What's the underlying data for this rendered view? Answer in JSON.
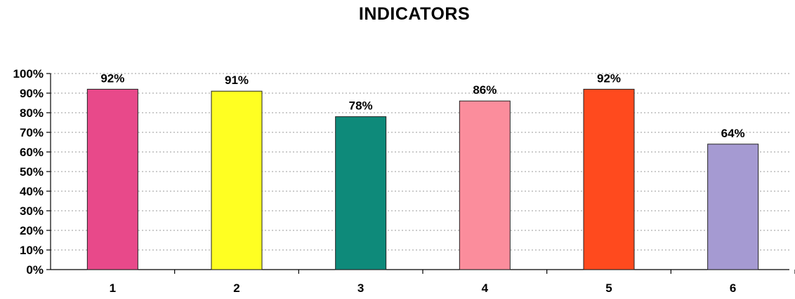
{
  "chart_data": {
    "type": "bar",
    "title": "INDICATORS",
    "xlabel": "",
    "ylabel": "",
    "categories": [
      "1",
      "2",
      "3",
      "4",
      "5",
      "6"
    ],
    "values": [
      92,
      91,
      78,
      86,
      92,
      64
    ],
    "data_labels": [
      "92%",
      "91%",
      "78%",
      "86%",
      "92%",
      "64%"
    ],
    "ylim": [
      0,
      100
    ],
    "y_ticks": [
      0,
      10,
      20,
      30,
      40,
      50,
      60,
      70,
      80,
      90,
      100
    ],
    "y_tick_labels": [
      "0%",
      "10%",
      "20%",
      "30%",
      "40%",
      "50%",
      "60%",
      "70%",
      "80%",
      "90%",
      "100%"
    ],
    "grid": true,
    "legend": false,
    "bar_colors": [
      "#e8498a",
      "#ffff22",
      "#0e8a7a",
      "#fb8d9c",
      "#ff4a1e",
      "#a59ad2"
    ]
  }
}
